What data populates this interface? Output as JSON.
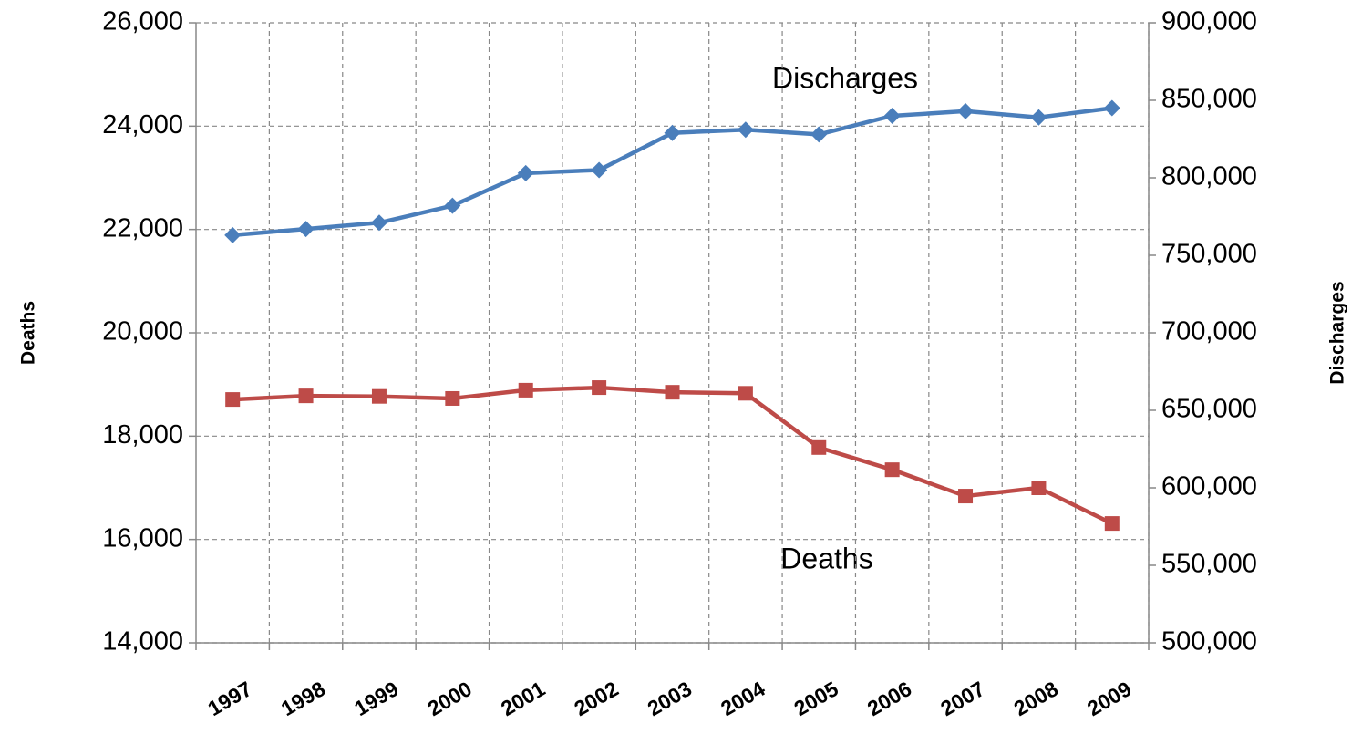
{
  "chart_data": {
    "type": "line",
    "categories": [
      "1997",
      "1998",
      "1999",
      "2000",
      "2001",
      "2002",
      "2003",
      "2004",
      "2005",
      "2006",
      "2007",
      "2008",
      "2009"
    ],
    "series": [
      {
        "name": "Discharges",
        "color": "#4a7ebb",
        "marker": "diamond",
        "axis": "y2",
        "values": [
          763000,
          767000,
          771000,
          782000,
          803000,
          805000,
          829000,
          831000,
          828000,
          840000,
          843000,
          839000,
          845000
        ]
      },
      {
        "name": "Deaths",
        "color": "#be4b48",
        "marker": "square",
        "values": [
          18710,
          18780,
          18770,
          18730,
          18890,
          18940,
          18850,
          18830,
          17780,
          17350,
          16840,
          17000,
          16310
        ]
      }
    ],
    "ylabel": "Deaths",
    "y2label": "Discharges",
    "annotations": [
      "Discharges",
      "Deaths"
    ],
    "ylim": [
      14000,
      26000
    ],
    "yticks": [
      {
        "value": 14000,
        "label": "14,000"
      },
      {
        "value": 16000,
        "label": "16,000"
      },
      {
        "value": 18000,
        "label": "18,000"
      },
      {
        "value": 20000,
        "label": "20,000"
      },
      {
        "value": 22000,
        "label": "22,000"
      },
      {
        "value": 24000,
        "label": "24,000"
      },
      {
        "value": 26000,
        "label": "26,000"
      }
    ],
    "y2lim": [
      500000,
      900000
    ],
    "y2ticks": [
      {
        "value": 500000,
        "label": "500,000"
      },
      {
        "value": 550000,
        "label": "550,000"
      },
      {
        "value": 600000,
        "label": "600,000"
      },
      {
        "value": 650000,
        "label": "650,000"
      },
      {
        "value": 700000,
        "label": "700,000"
      },
      {
        "value": 750000,
        "label": "750,000"
      },
      {
        "value": 800000,
        "label": "800,000"
      },
      {
        "value": 850000,
        "label": "850,000"
      },
      {
        "value": 900000,
        "label": "900,000"
      }
    ],
    "grid": true
  }
}
